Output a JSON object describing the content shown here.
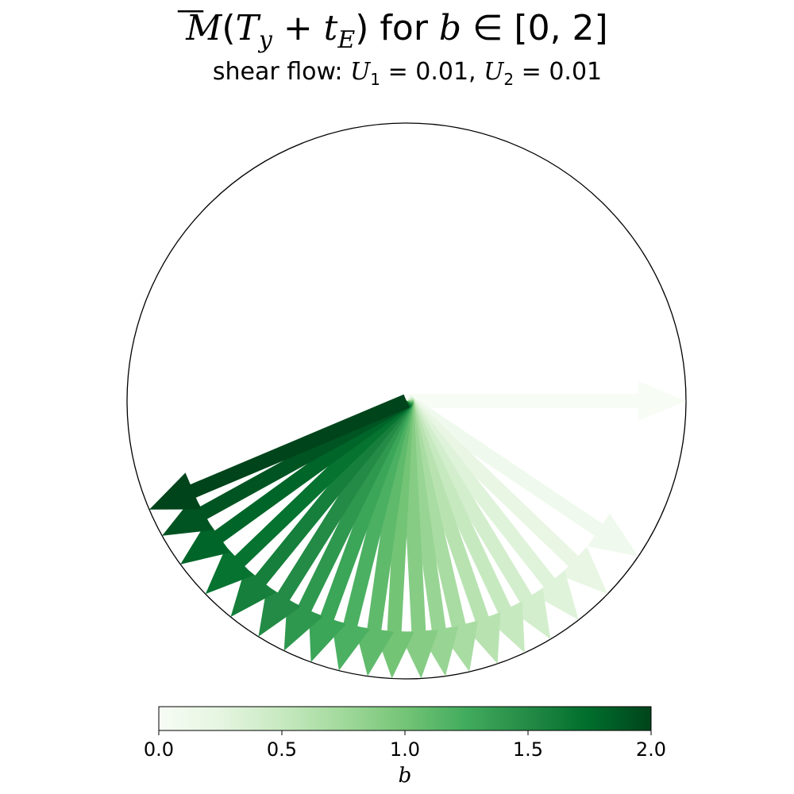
{
  "chart_data": {
    "type": "quiver",
    "title": {
      "prefix_symbol": "M",
      "overbar": "̄",
      "open": "(",
      "T": "T",
      "T_sub": "y",
      "plus": " + ",
      "t": "t",
      "t_sub": "E",
      "close": ")",
      "middle": " for ",
      "b": "b",
      "in": " ∈ ",
      "range": "[0, 2]"
    },
    "subtitle": {
      "prefix": "shear flow: ",
      "U1": "U",
      "U1_sub": "1",
      "eq1": " = 0.01, ",
      "U2": "U",
      "U2_sub": "2",
      "eq2": " = 0.01"
    },
    "unit_circle": true,
    "vectors": [
      {
        "b": 0.0,
        "angle_deg": 0
      },
      {
        "b": 0.1,
        "angle_deg": -34
      },
      {
        "b": 0.2,
        "angle_deg": -44
      },
      {
        "b": 0.3,
        "angle_deg": -52
      },
      {
        "b": 0.4,
        "angle_deg": -59
      },
      {
        "b": 0.5,
        "angle_deg": -65
      },
      {
        "b": 0.6,
        "angle_deg": -71
      },
      {
        "b": 0.7,
        "angle_deg": -77
      },
      {
        "b": 0.8,
        "angle_deg": -82
      },
      {
        "b": 0.9,
        "angle_deg": -87
      },
      {
        "b": 1.0,
        "angle_deg": -93
      },
      {
        "b": 1.1,
        "angle_deg": -98
      },
      {
        "b": 1.2,
        "angle_deg": -104
      },
      {
        "b": 1.3,
        "angle_deg": -110
      },
      {
        "b": 1.4,
        "angle_deg": -116
      },
      {
        "b": 1.5,
        "angle_deg": -122
      },
      {
        "b": 1.6,
        "angle_deg": -129
      },
      {
        "b": 1.7,
        "angle_deg": -136
      },
      {
        "b": 1.8,
        "angle_deg": -144
      },
      {
        "b": 1.9,
        "angle_deg": -151
      },
      {
        "b": 2.0,
        "angle_deg": -157
      }
    ],
    "colormap": "Greens",
    "colorbar": {
      "label": "b",
      "range": [
        0,
        2
      ],
      "ticks": [
        "0.0",
        "0.5",
        "1.0",
        "1.5",
        "2.0"
      ],
      "tick_values": [
        0,
        0.5,
        1.0,
        1.5,
        2.0
      ]
    },
    "colors": {
      "stops": [
        "#f7fcf5",
        "#e5f5e0",
        "#c7e9c0",
        "#a1d99b",
        "#74c476",
        "#41ab5d",
        "#238b45",
        "#006d2c",
        "#00441b"
      ],
      "circle": "#000000"
    }
  }
}
